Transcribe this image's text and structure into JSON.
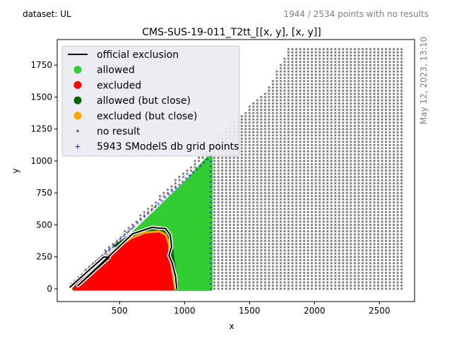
{
  "header": {
    "dataset_label": "dataset: UL",
    "points_note": "1944 / 2534 points with no results",
    "timestamp": "May 12, 2023, 13:10"
  },
  "colors": {
    "allowed": "#32cd32",
    "excluded": "#ff0000",
    "allowed_close": "#006400",
    "excluded_close": "#ffa500",
    "no_result": "#808080",
    "grid_points": "#0000ff",
    "exclusion_line": "#000000",
    "legend_bg": "#eaeaf2"
  },
  "chart_data": {
    "type": "scatter",
    "title": "CMS-SUS-19-011_T2tt_[[x, y], [x, y]]",
    "xlabel": "x",
    "ylabel": "y",
    "xlim": [
      20,
      2770
    ],
    "ylim": [
      -100,
      1950
    ],
    "xticks": [
      "500",
      "1000",
      "1500",
      "2000",
      "2500"
    ],
    "yticks": [
      "0",
      "250",
      "500",
      "750",
      "1000",
      "1250",
      "1500",
      "1750"
    ],
    "legend_position": "upper-left",
    "legend": [
      {
        "label": "official exclusion",
        "marker": "line",
        "color_key": "exclusion_line"
      },
      {
        "label": "allowed",
        "marker": "circle",
        "color_key": "allowed"
      },
      {
        "label": "excluded",
        "marker": "circle",
        "color_key": "excluded"
      },
      {
        "label": "allowed (but close)",
        "marker": "circle",
        "color_key": "allowed_close"
      },
      {
        "label": "excluded (but close)",
        "marker": "circle",
        "color_key": "excluded_close"
      },
      {
        "label": "no result",
        "marker": "dot",
        "color_key": "no_result"
      },
      {
        "label": "5943 SModelS db grid points",
        "marker": "plus",
        "color_key": "grid_points"
      }
    ],
    "official_exclusion": [
      [
        115,
        10
      ],
      [
        380,
        250
      ],
      [
        420,
        245
      ],
      [
        180,
        25
      ],
      [
        600,
        430
      ],
      [
        750,
        480
      ],
      [
        855,
        470
      ],
      [
        890,
        420
      ],
      [
        900,
        330
      ],
      [
        880,
        260
      ],
      [
        905,
        200
      ],
      [
        930,
        100
      ],
      [
        940,
        0
      ]
    ],
    "excluded_region": [
      [
        150,
        0
      ],
      [
        200,
        60
      ],
      [
        380,
        240
      ],
      [
        480,
        300
      ],
      [
        600,
        380
      ],
      [
        700,
        420
      ],
      [
        800,
        430
      ],
      [
        840,
        410
      ],
      [
        860,
        350
      ],
      [
        870,
        250
      ],
      [
        890,
        120
      ],
      [
        910,
        0
      ]
    ],
    "allowed_region": [
      [
        150,
        0
      ],
      [
        200,
        60
      ],
      [
        500,
        330
      ],
      [
        800,
        620
      ],
      [
        1030,
        850
      ],
      [
        1200,
        1040
      ],
      [
        1200,
        0
      ]
    ],
    "no_result_region": {
      "x_range": [
        1230,
        2680
      ],
      "diagonal_upper": [
        [
          150,
          60
        ],
        [
          1650,
          1580
        ],
        [
          1800,
          1880
        ],
        [
          2680,
          1880
        ]
      ],
      "x_step": 30,
      "y_step": 25
    },
    "grid_point_diagonal": [
      [
        130,
        40
      ],
      [
        1200,
        1040
      ]
    ],
    "grid_point_vertical": {
      "x": 1200,
      "y_range": [
        0,
        1040
      ]
    }
  }
}
